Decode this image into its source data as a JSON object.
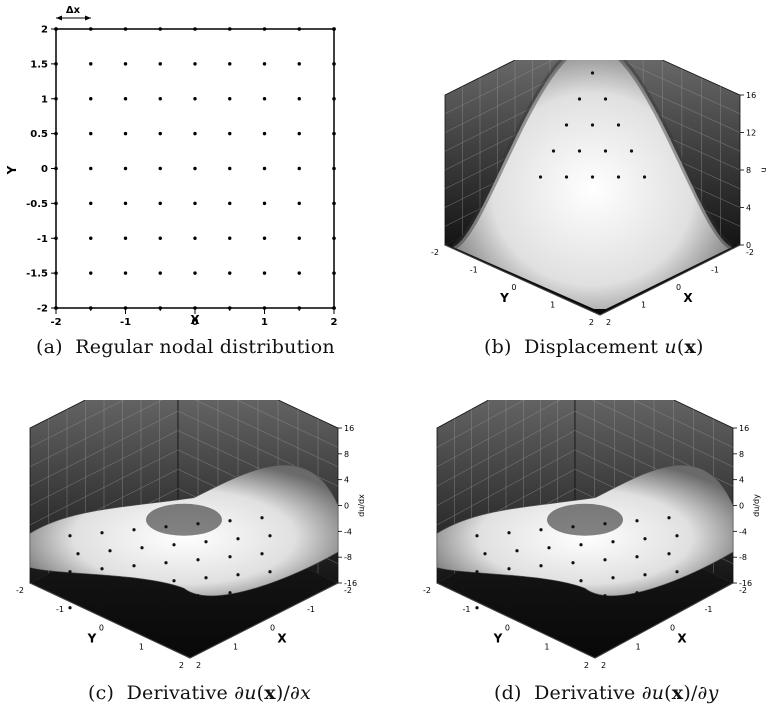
{
  "panel_a": {
    "xlabel": "X",
    "ylabel": "Y",
    "dx_label": "Δx",
    "xticks": [
      "-2",
      "-1.5",
      "-1",
      "-0.5",
      "0",
      "0.5",
      "1",
      "1.5",
      "2"
    ],
    "yticks": [
      "2",
      "1.5",
      "1",
      "0.5",
      "0",
      "-0.5",
      "-1",
      "-1.5",
      "-2"
    ],
    "grid_points": [
      -1.5,
      -1.0,
      -0.5,
      0.0,
      0.5,
      1.0,
      1.5
    ],
    "boundary_points": [
      -2,
      -1.5,
      -1,
      -0.5,
      0,
      0.5,
      1,
      1.5,
      2
    ]
  },
  "panel_b": {
    "zlabel": "u",
    "zticks": [
      "16",
      "12",
      "8",
      "4",
      "0"
    ],
    "x_axis": "X",
    "y_axis": "Y",
    "ticks_left": [
      "-2",
      "-1",
      "0",
      "1",
      "2"
    ],
    "ticks_right": [
      "2",
      "1",
      "0",
      "-1",
      "-2"
    ]
  },
  "panel_c": {
    "zlabel": "du/dx",
    "zticks": [
      "16",
      "8",
      "4",
      "0",
      "-4",
      "-8",
      "-16"
    ],
    "x_axis": "X",
    "y_axis": "Y",
    "ticks_left": [
      "-2",
      "-1",
      "0",
      "1",
      "2"
    ],
    "ticks_right": [
      "2",
      "1",
      "0",
      "-1",
      "-2"
    ]
  },
  "panel_d": {
    "zlabel": "du/dy",
    "zticks": [
      "16",
      "8",
      "4",
      "0",
      "-4",
      "-8",
      "-16"
    ],
    "x_axis": "X",
    "y_axis": "Y",
    "ticks_left": [
      "-2",
      "-1",
      "0",
      "1",
      "2"
    ],
    "ticks_right": [
      "2",
      "1",
      "0",
      "-1",
      "-2"
    ]
  },
  "captions": {
    "a_tag": "(a)",
    "a_text": "Regular nodal distribution",
    "b_tag": "(b)",
    "b_text": "Displacement",
    "c_tag": "(c)",
    "c_text": "Derivative",
    "d_tag": "(d)",
    "d_text": "Derivative"
  }
}
